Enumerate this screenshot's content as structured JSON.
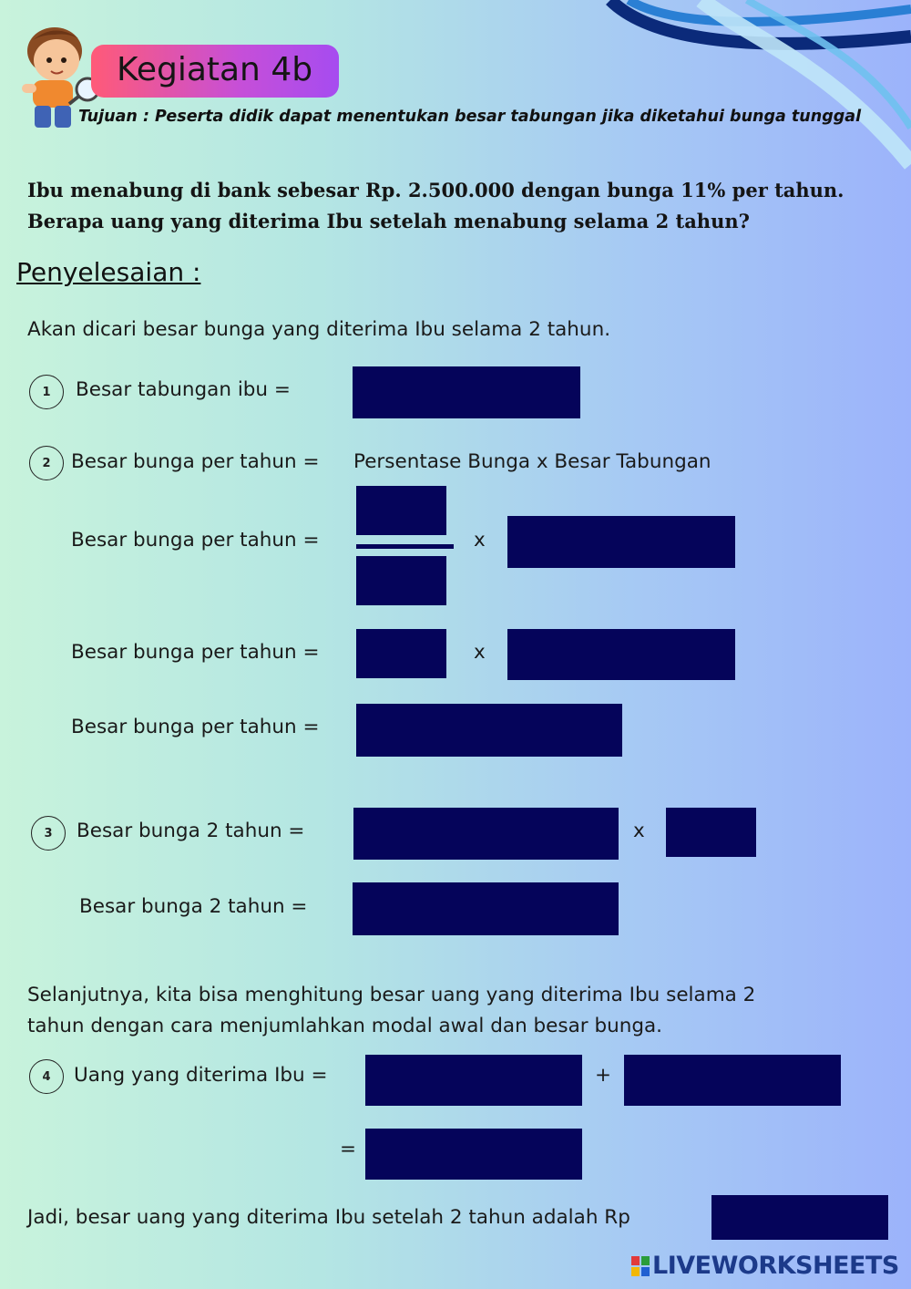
{
  "header": {
    "title": "Kegiatan 4b",
    "goal": "Tujuan : Peserta didik dapat menentukan besar tabungan jika diketahui bunga tunggal"
  },
  "question": {
    "line1": "Ibu menabung di bank sebesar Rp. 2.500.000 dengan bunga 11% per tahun.",
    "line2": "Berapa uang yang diterima Ibu setelah menabung selama 2 tahun?"
  },
  "solution": {
    "heading": "Penyelesaian :",
    "intro": "Akan dicari besar bunga yang diterima Ibu selama 2 tahun.",
    "step1": {
      "number": "1",
      "label": "Besar tabungan ibu  ="
    },
    "step2": {
      "number": "2",
      "label": "Besar bunga per tahun =",
      "formula": "Persentase Bunga x Besar Tabungan",
      "row_label": "Besar bunga per tahun =",
      "times": "x"
    },
    "step3": {
      "number": "3",
      "label": "Besar bunga 2 tahun =",
      "times": "x"
    },
    "followup_line1": "Selanjutnya, kita bisa menghitung besar uang yang diterima Ibu selama 2",
    "followup_line2": "tahun dengan cara menjumlahkan modal awal dan besar bunga.",
    "step4": {
      "number": "4",
      "label": "Uang yang diterima Ibu =",
      "plus": "+",
      "equals": "="
    },
    "conclusion": "Jadi, besar uang yang diterima Ibu setelah 2 tahun adalah Rp"
  },
  "footer": {
    "logo_text": "LIVEWORKSHEETS"
  },
  "colors": {
    "answer_box": "#05045a",
    "title_pill_start": "#ff5a78",
    "title_pill_end": "#a64cf0"
  }
}
